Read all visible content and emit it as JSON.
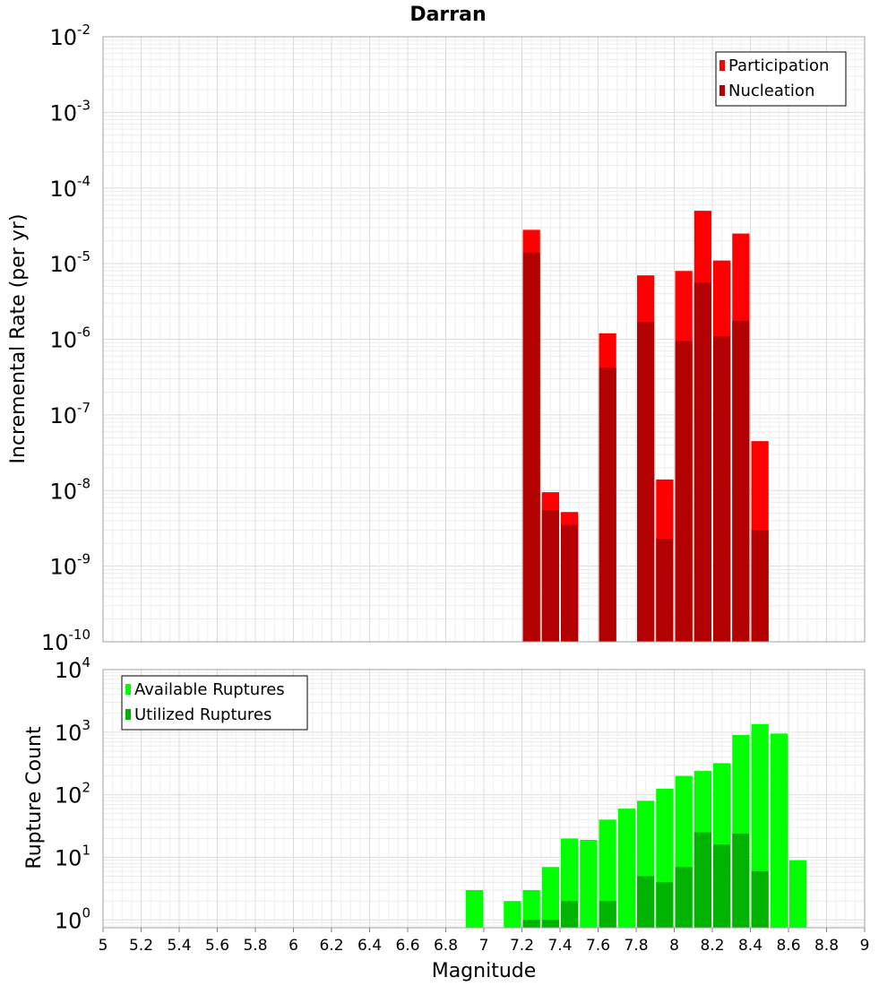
{
  "chart_data": [
    {
      "type": "bar",
      "title": "Darran",
      "xlabel": "",
      "ylabel": "Incremental Rate (per yr)",
      "yscale": "log",
      "ylim": [
        1e-10,
        0.01
      ],
      "xlim": [
        5,
        9
      ],
      "grid": true,
      "legend_position": "top-right",
      "x": [
        7.25,
        7.35,
        7.45,
        7.65,
        7.85,
        7.95,
        8.05,
        8.15,
        8.25,
        8.35,
        8.45
      ],
      "series": [
        {
          "name": "Participation",
          "color": "#ff0000",
          "values": [
            2.8e-05,
            9.5e-09,
            5.2e-09,
            1.2e-06,
            7e-06,
            1.4e-08,
            8e-06,
            5e-05,
            1.1e-05,
            2.5e-05,
            4.5e-08
          ]
        },
        {
          "name": "Nucleation",
          "color": "#b30000",
          "values": [
            1.4e-05,
            5.5e-09,
            3.5e-09,
            4.2e-07,
            1.7e-06,
            2.3e-09,
            9.5e-07,
            5.6e-06,
            1.1e-06,
            1.75e-06,
            3e-09
          ]
        }
      ]
    },
    {
      "type": "bar",
      "title": "",
      "xlabel": "Magnitude",
      "ylabel": "Rupture Count",
      "yscale": "log",
      "ylim": [
        0.75,
        10000
      ],
      "xlim": [
        5,
        9
      ],
      "grid": true,
      "legend_position": "top-left",
      "x": [
        6.95,
        7.15,
        7.25,
        7.35,
        7.45,
        7.55,
        7.65,
        7.75,
        7.85,
        7.95,
        8.05,
        8.15,
        8.25,
        8.35,
        8.45,
        8.55,
        8.65
      ],
      "series": [
        {
          "name": "Available Ruptures",
          "color": "#00ff00",
          "values": [
            3,
            2,
            3,
            7,
            20,
            19,
            40,
            60,
            80,
            125,
            200,
            240,
            320,
            900,
            1350,
            950,
            9
          ]
        },
        {
          "name": "Utilized Ruptures",
          "color": "#00b300",
          "values": [
            0,
            0,
            1,
            1,
            2,
            0,
            2,
            0,
            5,
            4,
            7,
            25,
            16,
            24,
            6,
            0,
            0
          ]
        }
      ]
    }
  ],
  "x_ticks": [
    "5",
    "5.2",
    "5.4",
    "5.6",
    "5.8",
    "6",
    "6.2",
    "6.4",
    "6.6",
    "6.8",
    "7",
    "7.2",
    "7.4",
    "7.6",
    "7.8",
    "8",
    "8.2",
    "8.4",
    "8.6",
    "8.8",
    "9"
  ],
  "top_y_ticks": [
    {
      "base": "10",
      "exp": "-2"
    },
    {
      "base": "10",
      "exp": "-3"
    },
    {
      "base": "10",
      "exp": "-4"
    },
    {
      "base": "10",
      "exp": "-5"
    },
    {
      "base": "10",
      "exp": "-6"
    },
    {
      "base": "10",
      "exp": "-7"
    },
    {
      "base": "10",
      "exp": "-8"
    },
    {
      "base": "10",
      "exp": "-9"
    },
    {
      "base": "10",
      "exp": "-10"
    }
  ],
  "bottom_y_ticks": [
    {
      "base": "10",
      "exp": "4"
    },
    {
      "base": "10",
      "exp": "3"
    },
    {
      "base": "10",
      "exp": "2"
    },
    {
      "base": "10",
      "exp": "1"
    },
    {
      "base": "10",
      "exp": "0"
    }
  ]
}
